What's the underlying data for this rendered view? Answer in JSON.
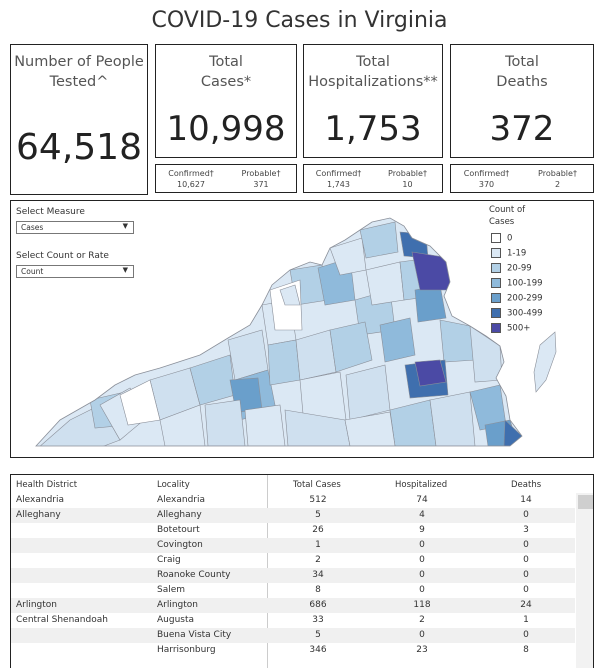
{
  "title": "COVID-19 Cases in Virginia",
  "cards": {
    "tested": {
      "label_line1": "Number of People",
      "label_line2": "Tested^",
      "value": "64,518"
    },
    "cases": {
      "label_line1": "Total",
      "label_line2": "Cases*",
      "value": "10,998",
      "confirmed_label": "Confirmed†",
      "confirmed": "10,627",
      "probable_label": "Probable†",
      "probable": "371"
    },
    "hosp": {
      "label_line1": "Total",
      "label_line2": "Hospitalizations**",
      "value": "1,753",
      "confirmed_label": "Confirmed†",
      "confirmed": "1,743",
      "probable_label": "Probable†",
      "probable": "10"
    },
    "deaths": {
      "label_line1": "Total",
      "label_line2": "Deaths",
      "value": "372",
      "confirmed_label": "Confirmed†",
      "confirmed": "370",
      "probable_label": "Probable†",
      "probable": "2"
    }
  },
  "controls": {
    "measure_label": "Select Measure",
    "measure_value": "Cases",
    "count_label": "Select Count or Rate",
    "count_value": "Count"
  },
  "legend": {
    "title_line1": "Count of",
    "title_line2": "Cases",
    "items": [
      {
        "label": "0",
        "color": "#ffffff"
      },
      {
        "label": "1-19",
        "color": "#dbe8f4"
      },
      {
        "label": "20-99",
        "color": "#b2d0e6"
      },
      {
        "label": "100-199",
        "color": "#8fbadb"
      },
      {
        "label": "200-299",
        "color": "#6a9fcb"
      },
      {
        "label": "300-499",
        "color": "#3f6fae"
      },
      {
        "label": "500+",
        "color": "#4b4aa5"
      }
    ]
  },
  "table": {
    "headers": [
      "Health District",
      "Locality",
      "Total Cases",
      "Hospitalized",
      "Deaths"
    ],
    "rows": [
      {
        "district": "Alexandria",
        "locality": "Alexandria",
        "cases": "512",
        "hosp": "74",
        "deaths": "14"
      },
      {
        "district": "Alleghany",
        "locality": "Alleghany",
        "cases": "5",
        "hosp": "4",
        "deaths": "0"
      },
      {
        "district": "",
        "locality": "Botetourt",
        "cases": "26",
        "hosp": "9",
        "deaths": "3"
      },
      {
        "district": "",
        "locality": "Covington",
        "cases": "1",
        "hosp": "0",
        "deaths": "0"
      },
      {
        "district": "",
        "locality": "Craig",
        "cases": "2",
        "hosp": "0",
        "deaths": "0"
      },
      {
        "district": "",
        "locality": "Roanoke County",
        "cases": "34",
        "hosp": "0",
        "deaths": "0"
      },
      {
        "district": "",
        "locality": "Salem",
        "cases": "8",
        "hosp": "0",
        "deaths": "0"
      },
      {
        "district": "Arlington",
        "locality": "Arlington",
        "cases": "686",
        "hosp": "118",
        "deaths": "24"
      },
      {
        "district": "Central Shenandoah",
        "locality": "Augusta",
        "cases": "33",
        "hosp": "2",
        "deaths": "1"
      },
      {
        "district": "",
        "locality": "Buena Vista City",
        "cases": "5",
        "hosp": "0",
        "deaths": "0"
      },
      {
        "district": "",
        "locality": "Harrisonburg",
        "cases": "346",
        "hosp": "23",
        "deaths": "8"
      }
    ]
  }
}
